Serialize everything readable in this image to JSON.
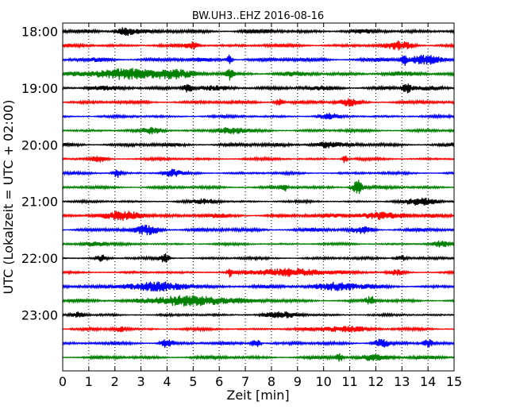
{
  "chart_data": {
    "type": "line",
    "title": "BW.UH3..EHZ 2016-08-16",
    "xlabel": "Zeit  [min]",
    "ylabel": "UTC (Lokalzeit = UTC + 02:00)",
    "xlim": [
      0,
      15
    ],
    "x_ticks": [
      "0",
      "1",
      "2",
      "3",
      "4",
      "5",
      "6",
      "7",
      "8",
      "9",
      "10",
      "11",
      "12",
      "13",
      "14",
      "15"
    ],
    "y_tick_labels": [
      "18:00",
      "19:00",
      "20:00",
      "21:00",
      "22:00",
      "23:00"
    ],
    "trace_interval_min": 15,
    "grid": "vertical dotted",
    "colors": [
      "#000000",
      "#ff0000",
      "#0000ff",
      "#008000"
    ],
    "series": [
      {
        "start": "18:00",
        "color": "#000000",
        "level": 0.55,
        "bursts": [
          [
            2.4,
            1.6,
            0.6
          ]
        ]
      },
      {
        "start": "18:15",
        "color": "#ff0000",
        "level": 0.45,
        "bursts": [
          [
            5.0,
            1.2,
            0.4
          ],
          [
            13.0,
            1.4,
            0.8
          ]
        ]
      },
      {
        "start": "18:30",
        "color": "#0000ff",
        "level": 0.55,
        "bursts": [
          [
            6.4,
            2.6,
            0.15
          ],
          [
            13.1,
            2.8,
            0.15
          ],
          [
            14.0,
            1.4,
            1.2
          ]
        ]
      },
      {
        "start": "18:45",
        "color": "#008000",
        "level": 0.6,
        "bursts": [
          [
            2.5,
            1.7,
            2.0
          ],
          [
            4.0,
            1.5,
            1.2
          ],
          [
            6.4,
            2.0,
            0.2
          ]
        ]
      },
      {
        "start": "19:00",
        "color": "#000000",
        "level": 0.6,
        "bursts": [
          [
            4.8,
            1.8,
            0.3
          ],
          [
            13.2,
            2.0,
            0.25
          ]
        ]
      },
      {
        "start": "19:15",
        "color": "#ff0000",
        "level": 0.45,
        "bursts": [
          [
            8.3,
            1.3,
            0.3
          ],
          [
            11.0,
            1.2,
            0.6
          ]
        ]
      },
      {
        "start": "19:30",
        "color": "#0000ff",
        "level": 0.35,
        "bursts": [
          [
            10.2,
            1.0,
            0.5
          ]
        ]
      },
      {
        "start": "19:45",
        "color": "#008000",
        "level": 0.4,
        "bursts": [
          [
            6.4,
            1.2,
            0.8
          ],
          [
            3.5,
            1.0,
            0.6
          ]
        ]
      },
      {
        "start": "20:00",
        "color": "#000000",
        "level": 0.5,
        "bursts": [
          [
            10.0,
            1.0,
            0.8
          ]
        ]
      },
      {
        "start": "20:15",
        "color": "#ff0000",
        "level": 0.35,
        "bursts": [
          [
            10.8,
            1.8,
            0.15
          ],
          [
            1.4,
            1.0,
            0.5
          ]
        ]
      },
      {
        "start": "20:30",
        "color": "#0000ff",
        "level": 0.35,
        "bursts": [
          [
            2.1,
            1.6,
            0.3
          ],
          [
            4.2,
            1.2,
            0.5
          ]
        ]
      },
      {
        "start": "20:45",
        "color": "#008000",
        "level": 0.4,
        "bursts": [
          [
            11.3,
            2.8,
            0.35
          ],
          [
            8.5,
            1.4,
            0.2
          ]
        ]
      },
      {
        "start": "21:00",
        "color": "#000000",
        "level": 0.3,
        "bursts": [
          [
            13.8,
            1.4,
            1.0
          ],
          [
            5.5,
            0.8,
            0.8
          ]
        ]
      },
      {
        "start": "21:15",
        "color": "#ff0000",
        "level": 0.55,
        "bursts": [
          [
            2.5,
            1.4,
            1.2
          ],
          [
            12.0,
            1.1,
            1.6
          ]
        ]
      },
      {
        "start": "21:30",
        "color": "#0000ff",
        "level": 0.5,
        "bursts": [
          [
            3.3,
            1.5,
            0.8
          ],
          [
            11.5,
            1.2,
            0.6
          ]
        ]
      },
      {
        "start": "21:45",
        "color": "#008000",
        "level": 0.3,
        "bursts": [
          [
            1.2,
            1.0,
            0.8
          ],
          [
            14.5,
            1.0,
            0.5
          ]
        ]
      },
      {
        "start": "22:00",
        "color": "#000000",
        "level": 0.35,
        "bursts": [
          [
            3.9,
            1.8,
            0.3
          ],
          [
            1.5,
            1.2,
            0.3
          ],
          [
            13.0,
            1.2,
            0.4
          ]
        ]
      },
      {
        "start": "22:15",
        "color": "#ff0000",
        "level": 0.3,
        "bursts": [
          [
            8.8,
            1.4,
            2.5
          ],
          [
            6.4,
            2.2,
            0.12
          ],
          [
            12.8,
            1.0,
            0.5
          ]
        ]
      },
      {
        "start": "22:30",
        "color": "#0000ff",
        "level": 0.45,
        "bursts": [
          [
            3.5,
            1.4,
            2.5
          ],
          [
            10.5,
            1.5,
            1.5
          ]
        ]
      },
      {
        "start": "22:45",
        "color": "#008000",
        "level": 0.4,
        "bursts": [
          [
            5.0,
            1.8,
            3.0
          ],
          [
            11.8,
            1.6,
            0.3
          ]
        ]
      },
      {
        "start": "23:00",
        "color": "#000000",
        "level": 0.3,
        "bursts": [
          [
            8.4,
            1.0,
            1.2
          ],
          [
            0.6,
            1.0,
            0.4
          ]
        ]
      },
      {
        "start": "23:15",
        "color": "#ff0000",
        "level": 0.35,
        "bursts": [
          [
            10.8,
            1.2,
            1.5
          ],
          [
            2.2,
            1.0,
            0.5
          ]
        ]
      },
      {
        "start": "23:30",
        "color": "#0000ff",
        "level": 0.4,
        "bursts": [
          [
            4.0,
            1.8,
            0.4
          ],
          [
            7.4,
            1.6,
            0.3
          ],
          [
            12.2,
            1.6,
            0.5
          ],
          [
            14.0,
            1.4,
            0.3
          ]
        ]
      },
      {
        "start": "23:45",
        "color": "#008000",
        "level": 0.45,
        "bursts": [
          [
            10.6,
            1.6,
            0.2
          ],
          [
            12.0,
            1.2,
            1.0
          ]
        ]
      }
    ]
  }
}
